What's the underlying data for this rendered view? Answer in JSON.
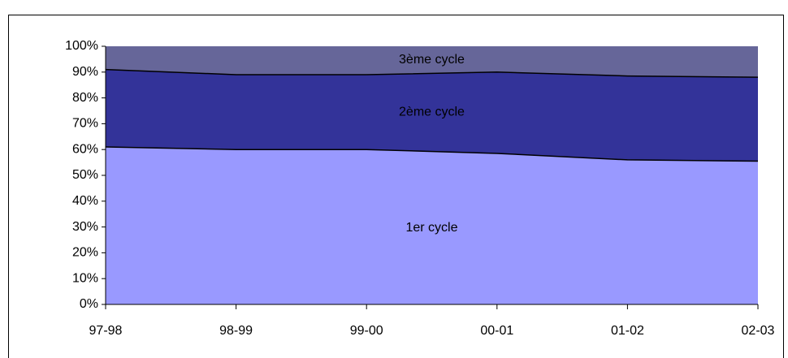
{
  "chart_data": {
    "type": "stacked_area",
    "categories": [
      "97-98",
      "98-99",
      "99-00",
      "00-01",
      "01-02",
      "02-03"
    ],
    "series": [
      {
        "name": "1er cycle",
        "color": "#9999ff",
        "values": [
          61,
          60,
          60,
          58.5,
          56,
          55.5
        ]
      },
      {
        "name": "2ème cycle",
        "color": "#333399",
        "values": [
          30,
          29,
          29,
          31.5,
          32.5,
          32.5
        ]
      },
      {
        "name": "3ème cycle",
        "color": "#666699",
        "values": [
          9,
          11,
          11,
          10,
          11.5,
          12
        ]
      }
    ],
    "ylim": [
      0,
      100
    ],
    "yticks": [
      {
        "value": 0,
        "label": "0%"
      },
      {
        "value": 10,
        "label": "10%"
      },
      {
        "value": 20,
        "label": "20%"
      },
      {
        "value": 30,
        "label": "30%"
      },
      {
        "value": 40,
        "label": "40%"
      },
      {
        "value": 50,
        "label": "50%"
      },
      {
        "value": 60,
        "label": "60%"
      },
      {
        "value": 70,
        "label": "70%"
      },
      {
        "value": 80,
        "label": "80%"
      },
      {
        "value": 90,
        "label": "90%"
      },
      {
        "value": 100,
        "label": "100%"
      }
    ]
  }
}
